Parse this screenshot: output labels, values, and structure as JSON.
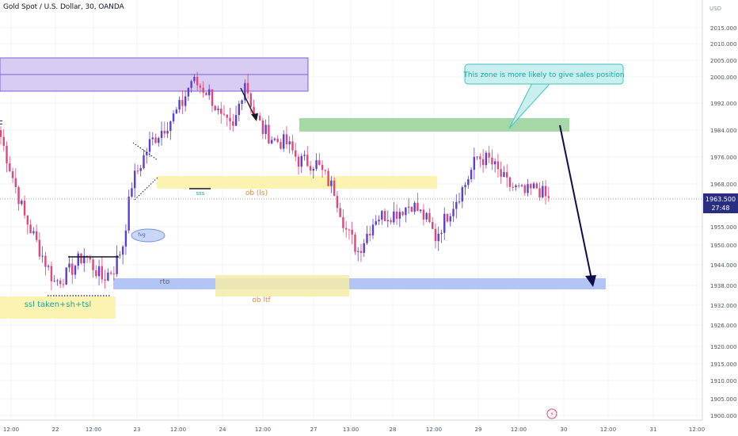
{
  "header": {
    "symbol": "Gold Spot / U.S. Dollar, 30, OANDA"
  },
  "price_axis": {
    "currency": "USD",
    "ticks": [
      "2015.000",
      "2010.000",
      "2005.000",
      "2000.000",
      "1992.000",
      "1984.000",
      "1976.000",
      "1968.000",
      "1955.000",
      "1950.000",
      "1944.000",
      "1938.000",
      "1932.000",
      "1926.000",
      "1920.000",
      "1915.000",
      "1910.000",
      "1905.000",
      "1900.000"
    ],
    "last_price": "1963.500",
    "countdown": "27:48"
  },
  "time_axis": {
    "ticks": [
      "12:00",
      "22",
      "12:00",
      "23",
      "12:00",
      "24",
      "12:00",
      "27",
      "13:00",
      "28",
      "12:00",
      "29",
      "12:00",
      "30",
      "12:00",
      "31",
      "12:00"
    ]
  },
  "annotations": {
    "callout": "This zone is more likely to give sales position",
    "ssl": "ssl taken+sh+tsl",
    "ob_ls": "ob (ls)",
    "ob_ltf": "ob ltf",
    "rto": "rto",
    "sss": "sss",
    "fvg": "fvg"
  },
  "colors": {
    "up": "#5b3fd1",
    "down": "#e0457b",
    "zone_purple": "#d9ccf2",
    "zone_green": "#9fd3a0",
    "zone_yellow": "#fdf3b0",
    "zone_blue": "#aebff5",
    "callout_bg": "#c9f0ee",
    "callout_text": "#18a7a0",
    "price_label": "#2a2e80"
  },
  "chart_data": {
    "type": "candlestick",
    "title": "Gold Spot / U.S. Dollar, 30, OANDA",
    "ylabel": "USD",
    "ylim": [
      1898,
      2020
    ],
    "last": 1963.5,
    "waypoints": [
      [
        0,
        1982
      ],
      [
        8,
        1958
      ],
      [
        18,
        1939
      ],
      [
        22,
        1941
      ],
      [
        28,
        1947
      ],
      [
        34,
        1940
      ],
      [
        38,
        1943
      ],
      [
        41,
        1950
      ],
      [
        44,
        1968
      ],
      [
        50,
        1980
      ],
      [
        55,
        1985
      ],
      [
        58,
        1988
      ],
      [
        61,
        1992
      ],
      [
        64,
        1999
      ],
      [
        67,
        1997
      ],
      [
        70,
        1995
      ],
      [
        74,
        1987
      ],
      [
        78,
        1984
      ],
      [
        82,
        1999
      ],
      [
        85,
        1989
      ],
      [
        88,
        1984
      ],
      [
        92,
        1981
      ],
      [
        96,
        1980
      ],
      [
        100,
        1975
      ],
      [
        106,
        1974
      ],
      [
        112,
        1966
      ],
      [
        116,
        1954
      ],
      [
        120,
        1948
      ],
      [
        126,
        1958
      ],
      [
        132,
        1959
      ],
      [
        138,
        1962
      ],
      [
        143,
        1957
      ],
      [
        146,
        1952
      ],
      [
        152,
        1962
      ],
      [
        156,
        1968
      ],
      [
        160,
        1976
      ],
      [
        164,
        1975
      ],
      [
        170,
        1968
      ],
      [
        176,
        1965
      ],
      [
        180,
        1967
      ],
      [
        184,
        1963
      ]
    ]
  }
}
